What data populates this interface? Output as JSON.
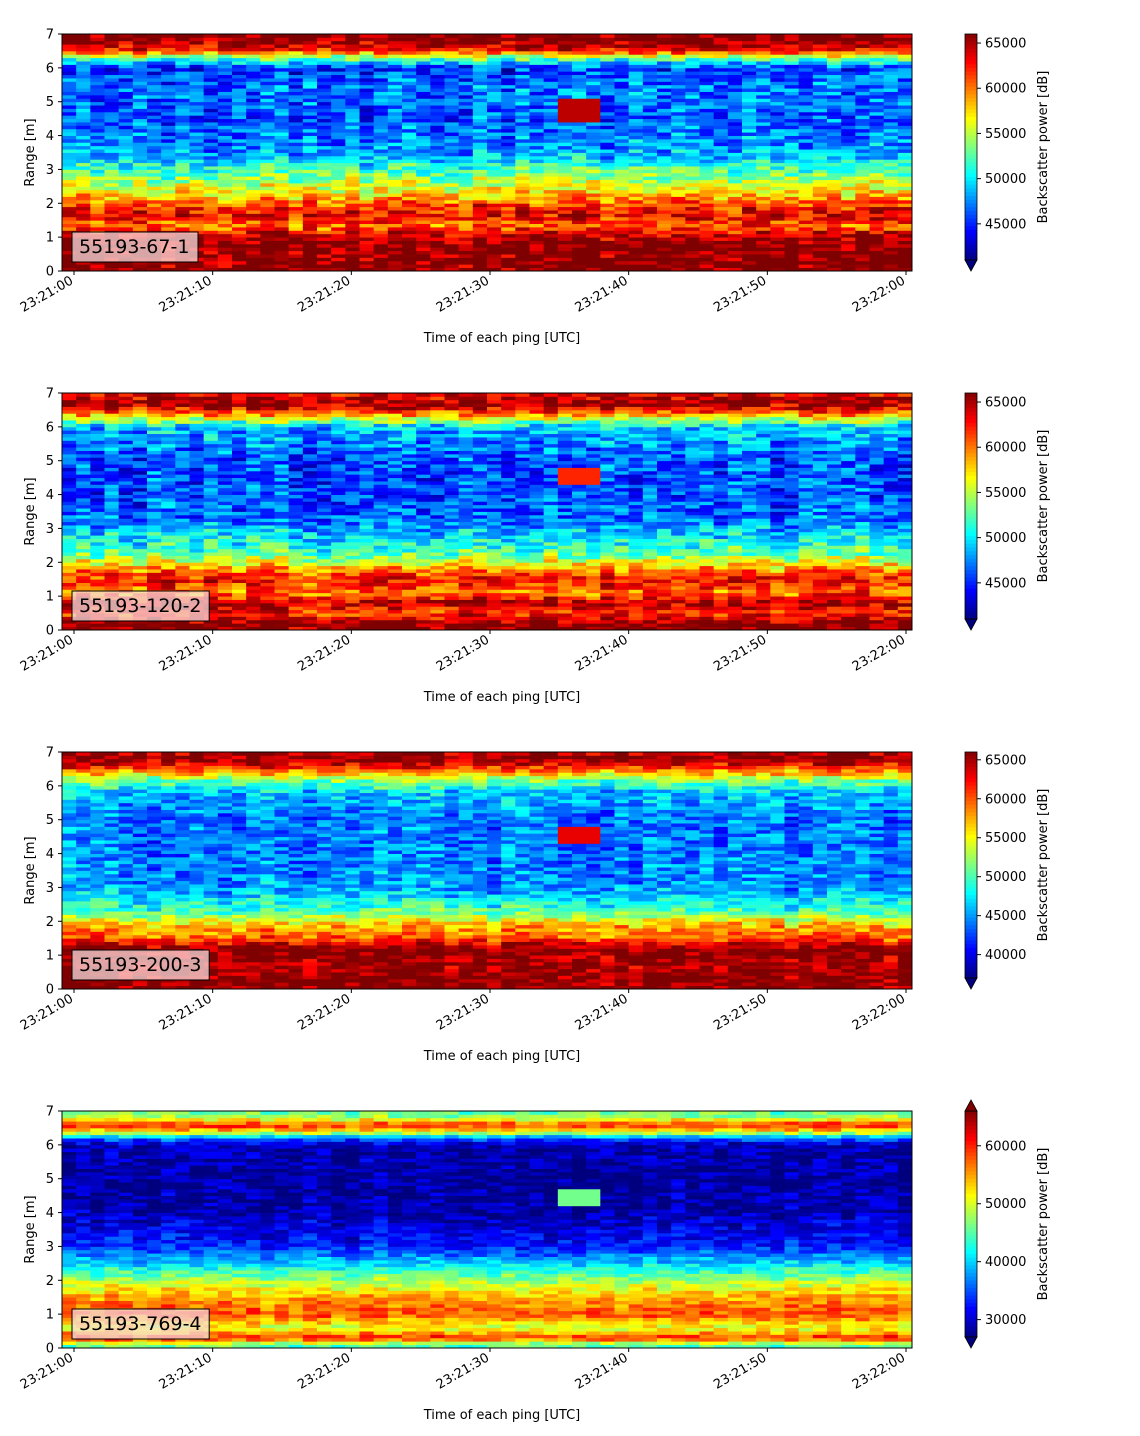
{
  "colormap": [
    "#00007f",
    "#0000ff",
    "#007fff",
    "#00ffff",
    "#7fff7f",
    "#ffff00",
    "#ff7f00",
    "#ff0000",
    "#7f0000"
  ],
  "chart_data": [
    {
      "type": "heatmap",
      "label": "55193-67-1",
      "xlabel": "Time of each ping [UTC]",
      "ylabel": "Range [m]",
      "x_ticks": [
        "23:21:00",
        "23:21:10",
        "23:21:20",
        "23:21:30",
        "23:21:40",
        "23:21:50",
        "23:22:00"
      ],
      "xlim": [
        "23:21:00",
        "23:22:00"
      ],
      "y_ticks": [
        "0",
        "1",
        "2",
        "3",
        "4",
        "5",
        "6",
        "7"
      ],
      "ylim": [
        0,
        7
      ],
      "colorbar_label": "Backscatter power [dB]",
      "colorbar_ticks": [
        "45000",
        "50000",
        "55000",
        "60000",
        "65000"
      ],
      "clim": [
        41000,
        66000
      ],
      "colorbar_extend": "min",
      "profile": [
        {
          "range": 0.2,
          "value": 66000
        },
        {
          "range": 0.8,
          "value": 66000
        },
        {
          "range": 1.1,
          "value": 64000
        },
        {
          "range": 1.3,
          "value": 60000
        },
        {
          "range": 1.6,
          "value": 63000
        },
        {
          "range": 1.9,
          "value": 62000
        },
        {
          "range": 2.2,
          "value": 58000
        },
        {
          "range": 2.6,
          "value": 55000
        },
        {
          "range": 3.0,
          "value": 52000
        },
        {
          "range": 3.5,
          "value": 48000
        },
        {
          "range": 4.5,
          "value": 46000
        },
        {
          "range": 5.5,
          "value": 47000
        },
        {
          "range": 6.0,
          "value": 45000
        },
        {
          "range": 6.3,
          "value": 53000
        },
        {
          "range": 6.5,
          "value": 62000
        },
        {
          "range": 6.8,
          "value": 66000
        },
        {
          "range": 7.0,
          "value": 66000
        }
      ],
      "target": {
        "time_start": "23:21:35",
        "time_end": "23:21:38",
        "range_low": 4.4,
        "range_high": 5.1,
        "value": 64500
      }
    },
    {
      "type": "heatmap",
      "label": "55193-120-2",
      "xlabel": "Time of each ping [UTC]",
      "ylabel": "Range [m]",
      "x_ticks": [
        "23:21:00",
        "23:21:10",
        "23:21:20",
        "23:21:30",
        "23:21:40",
        "23:21:50",
        "23:22:00"
      ],
      "xlim": [
        "23:21:00",
        "23:22:00"
      ],
      "y_ticks": [
        "0",
        "1",
        "2",
        "3",
        "4",
        "5",
        "6",
        "7"
      ],
      "ylim": [
        0,
        7
      ],
      "colorbar_label": "Backscatter power [dB]",
      "colorbar_ticks": [
        "45000",
        "50000",
        "55000",
        "60000",
        "65000"
      ],
      "clim": [
        41000,
        66000
      ],
      "colorbar_extend": "min",
      "profile": [
        {
          "range": 0.2,
          "value": 66000
        },
        {
          "range": 0.5,
          "value": 62000
        },
        {
          "range": 0.8,
          "value": 65000
        },
        {
          "range": 1.1,
          "value": 60000
        },
        {
          "range": 1.5,
          "value": 63000
        },
        {
          "range": 1.9,
          "value": 58000
        },
        {
          "range": 2.3,
          "value": 52000
        },
        {
          "range": 2.8,
          "value": 50000
        },
        {
          "range": 3.2,
          "value": 47000
        },
        {
          "range": 4.0,
          "value": 46000
        },
        {
          "range": 5.0,
          "value": 46000
        },
        {
          "range": 6.0,
          "value": 49000
        },
        {
          "range": 6.4,
          "value": 60000
        },
        {
          "range": 6.7,
          "value": 66000
        },
        {
          "range": 7.0,
          "value": 63000
        }
      ],
      "target": {
        "time_start": "23:21:35",
        "time_end": "23:21:38",
        "range_low": 4.3,
        "range_high": 4.8,
        "value": 62000
      }
    },
    {
      "type": "heatmap",
      "label": "55193-200-3",
      "xlabel": "Time of each ping [UTC]",
      "ylabel": "Range [m]",
      "x_ticks": [
        "23:21:00",
        "23:21:10",
        "23:21:20",
        "23:21:30",
        "23:21:40",
        "23:21:50",
        "23:22:00"
      ],
      "xlim": [
        "23:21:00",
        "23:22:00"
      ],
      "y_ticks": [
        "0",
        "1",
        "2",
        "3",
        "4",
        "5",
        "6",
        "7"
      ],
      "ylim": [
        0,
        7
      ],
      "colorbar_label": "Backscatter power [dB]",
      "colorbar_ticks": [
        "40000",
        "45000",
        "50000",
        "55000",
        "60000",
        "65000"
      ],
      "clim": [
        37000,
        66000
      ],
      "colorbar_extend": "min",
      "profile": [
        {
          "range": 0.2,
          "value": 66000
        },
        {
          "range": 0.7,
          "value": 65000
        },
        {
          "range": 1.2,
          "value": 66000
        },
        {
          "range": 1.5,
          "value": 60000
        },
        {
          "range": 1.9,
          "value": 57000
        },
        {
          "range": 2.3,
          "value": 50000
        },
        {
          "range": 3.0,
          "value": 45000
        },
        {
          "range": 4.0,
          "value": 44000
        },
        {
          "range": 5.0,
          "value": 44000
        },
        {
          "range": 5.8,
          "value": 46000
        },
        {
          "range": 6.2,
          "value": 52000
        },
        {
          "range": 6.5,
          "value": 60000
        },
        {
          "range": 6.8,
          "value": 66000
        },
        {
          "range": 7.0,
          "value": 64000
        }
      ],
      "target": {
        "time_start": "23:21:35",
        "time_end": "23:21:38",
        "range_low": 4.3,
        "range_high": 4.8,
        "value": 63000
      }
    },
    {
      "type": "heatmap",
      "label": "55193-769-4",
      "xlabel": "Time of each ping [UTC]",
      "ylabel": "Range [m]",
      "x_ticks": [
        "23:21:00",
        "23:21:10",
        "23:21:20",
        "23:21:30",
        "23:21:40",
        "23:21:50",
        "23:22:00"
      ],
      "xlim": [
        "23:21:00",
        "23:22:00"
      ],
      "y_ticks": [
        "0",
        "1",
        "2",
        "3",
        "4",
        "5",
        "6",
        "7"
      ],
      "ylim": [
        0,
        7
      ],
      "colorbar_label": "Backscatter power [dB]",
      "colorbar_ticks": [
        "30000",
        "40000",
        "50000",
        "60000"
      ],
      "clim": [
        27000,
        66000
      ],
      "colorbar_extend": "both",
      "profile": [
        {
          "range": 0.1,
          "value": 45000
        },
        {
          "range": 0.3,
          "value": 60000
        },
        {
          "range": 0.6,
          "value": 50000
        },
        {
          "range": 1.0,
          "value": 58000
        },
        {
          "range": 1.5,
          "value": 55000
        },
        {
          "range": 2.0,
          "value": 48000
        },
        {
          "range": 2.5,
          "value": 40000
        },
        {
          "range": 3.0,
          "value": 33000
        },
        {
          "range": 4.0,
          "value": 29000
        },
        {
          "range": 5.0,
          "value": 28000
        },
        {
          "range": 6.0,
          "value": 29000
        },
        {
          "range": 6.2,
          "value": 36000
        },
        {
          "range": 6.4,
          "value": 52000
        },
        {
          "range": 6.6,
          "value": 60000
        },
        {
          "range": 6.8,
          "value": 48000
        },
        {
          "range": 7.0,
          "value": 45000
        }
      ],
      "target": {
        "time_start": "23:21:35",
        "time_end": "23:21:38",
        "range_low": 4.2,
        "range_high": 4.7,
        "value": 46000
      }
    }
  ]
}
